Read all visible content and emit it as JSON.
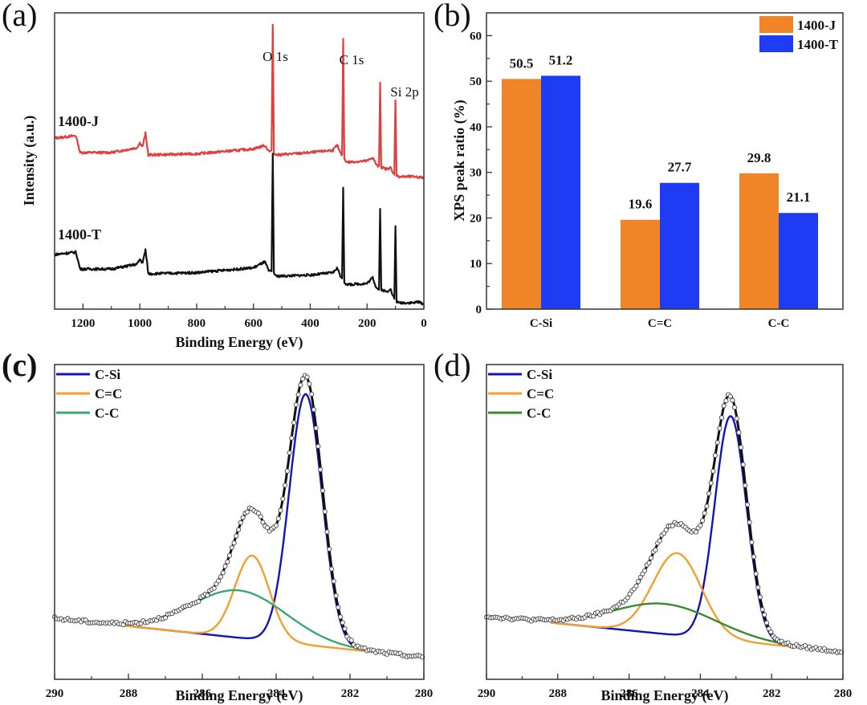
{
  "chart_data": [
    {
      "id": "a",
      "panel_label": "(a)",
      "type": "line",
      "title": "",
      "xlabel": "Binding Energy (eV)",
      "ylabel": "Intensity (a.u.)",
      "xlim": [
        1300,
        0
      ],
      "x_reversed": true,
      "xticks": [
        1200,
        1000,
        800,
        600,
        400,
        200,
        0
      ],
      "xticks_minor": [
        1100,
        900,
        700,
        500,
        300,
        100
      ],
      "yticks": [],
      "peak_annotations": [
        {
          "label": "O 1s",
          "x": 532
        },
        {
          "label": "C 1s",
          "x": 284
        },
        {
          "label": "Si 2p",
          "x": 100
        }
      ],
      "series": [
        {
          "name": "1400-J",
          "color": "#e04040",
          "offset": 1.0,
          "baseline_points": [
            [
              1300,
              0.42
            ],
            [
              1225,
              0.44
            ],
            [
              1210,
              0.3
            ],
            [
              1100,
              0.3
            ],
            [
              1010,
              0.34
            ],
            [
              1000,
              0.38
            ],
            [
              990,
              0.35
            ],
            [
              980,
              0.46
            ],
            [
              970,
              0.28
            ],
            [
              800,
              0.29
            ],
            [
              600,
              0.33
            ],
            [
              560,
              0.36
            ],
            [
              545,
              0.31
            ],
            [
              532,
              0.31
            ],
            [
              520,
              0.28
            ],
            [
              400,
              0.3
            ],
            [
              320,
              0.32
            ],
            [
              305,
              0.36
            ],
            [
              295,
              0.3
            ],
            [
              284,
              0.26
            ],
            [
              270,
              0.22
            ],
            [
              200,
              0.23
            ],
            [
              180,
              0.26
            ],
            [
              170,
              0.21
            ],
            [
              160,
              0.18
            ],
            [
              150,
              0.18
            ],
            [
              130,
              0.16
            ],
            [
              118,
              0.18
            ],
            [
              110,
              0.13
            ],
            [
              100,
              0.12
            ],
            [
              90,
              0.1
            ],
            [
              30,
              0.1
            ],
            [
              0,
              0.09
            ]
          ],
          "spikes": [
            {
              "x": 532,
              "h": 1.05
            },
            {
              "x": 284,
              "h": 0.98
            },
            {
              "x": 154,
              "h": 0.7
            },
            {
              "x": 100,
              "h": 0.62
            }
          ]
        },
        {
          "name": "1400-T",
          "color": "#111111",
          "offset": 0.0,
          "baseline_points": [
            [
              1300,
              0.42
            ],
            [
              1225,
              0.44
            ],
            [
              1210,
              0.3
            ],
            [
              1100,
              0.3
            ],
            [
              1010,
              0.34
            ],
            [
              1000,
              0.38
            ],
            [
              990,
              0.35
            ],
            [
              980,
              0.46
            ],
            [
              970,
              0.26
            ],
            [
              800,
              0.27
            ],
            [
              600,
              0.31
            ],
            [
              560,
              0.36
            ],
            [
              545,
              0.28
            ],
            [
              532,
              0.28
            ],
            [
              520,
              0.24
            ],
            [
              400,
              0.25
            ],
            [
              320,
              0.27
            ],
            [
              305,
              0.31
            ],
            [
              295,
              0.25
            ],
            [
              284,
              0.2
            ],
            [
              270,
              0.17
            ],
            [
              200,
              0.18
            ],
            [
              180,
              0.23
            ],
            [
              170,
              0.16
            ],
            [
              160,
              0.13
            ],
            [
              150,
              0.13
            ],
            [
              130,
              0.11
            ],
            [
              118,
              0.14
            ],
            [
              110,
              0.08
            ],
            [
              100,
              0.04
            ],
            [
              90,
              0.02
            ],
            [
              30,
              0.02
            ],
            [
              25,
              0.03
            ],
            [
              0,
              0.01
            ]
          ],
          "spikes": [
            {
              "x": 532,
              "h": 0.98
            },
            {
              "x": 284,
              "h": 0.78
            },
            {
              "x": 154,
              "h": 0.66
            },
            {
              "x": 100,
              "h": 0.62
            }
          ]
        }
      ]
    },
    {
      "id": "b",
      "panel_label": "(b)",
      "type": "bar",
      "title": "",
      "xlabel": "",
      "ylabel": "XPS peak ratio (%)",
      "ylim": [
        0,
        65
      ],
      "yticks": [
        0,
        10,
        20,
        30,
        40,
        50,
        60
      ],
      "categories": [
        "C-Si",
        "C=C",
        "C-C"
      ],
      "legend_position": "top-right",
      "series": [
        {
          "name": "1400-J",
          "color": "#f08528",
          "values": [
            50.5,
            19.6,
            29.8
          ],
          "labels": [
            "50.5",
            "19.6",
            "29.8"
          ]
        },
        {
          "name": "1400-T",
          "color": "#1f3cf5",
          "values": [
            51.2,
            27.7,
            21.1
          ],
          "labels": [
            "51.2",
            "27.7",
            "21.1"
          ]
        }
      ]
    },
    {
      "id": "c",
      "panel_label": "(c)",
      "type": "line",
      "title": "",
      "xlabel": "Binding Energy (eV)",
      "ylabel": "",
      "xlim": [
        290,
        280
      ],
      "x_reversed": true,
      "xticks": [
        290,
        288,
        286,
        284,
        282,
        280
      ],
      "xticks_minor": [
        289,
        287,
        285,
        283,
        281
      ],
      "ylim": [
        -0.08,
        1.05
      ],
      "legend_position": "top-left",
      "background": 0.02,
      "background_slope": 0.014,
      "components": [
        {
          "name": "C-Si",
          "color": "#1414b4",
          "center": 283.2,
          "height": 0.9,
          "fwhm": 1.05
        },
        {
          "name": "C=C",
          "color": "#f0a030",
          "center": 284.65,
          "height": 0.3,
          "fwhm": 1.1
        },
        {
          "name": "C-C",
          "color": "#3aa870",
          "center": 285.0,
          "height": 0.17,
          "fwhm": 3.0
        }
      ],
      "envelope_color": "#111111",
      "raw_data_marker": "open-circle"
    },
    {
      "id": "d",
      "panel_label": "(d)",
      "type": "line",
      "title": "",
      "xlabel": "Binding Energy (eV)",
      "ylabel": "",
      "xlim": [
        290,
        280
      ],
      "x_reversed": true,
      "xticks": [
        290,
        288,
        286,
        284,
        282,
        280
      ],
      "xticks_minor": [
        289,
        287,
        285,
        283,
        281
      ],
      "ylim": [
        -0.1,
        1.05
      ],
      "legend_position": "top-left",
      "background": 0.02,
      "background_slope": 0.013,
      "components": [
        {
          "name": "C-Si",
          "color": "#1414b4",
          "center": 283.15,
          "height": 0.82,
          "fwhm": 1.05
        },
        {
          "name": "C=C",
          "color": "#f0a030",
          "center": 284.65,
          "height": 0.3,
          "fwhm": 1.6
        },
        {
          "name": "C-C",
          "color": "#3a8a30",
          "center": 285.0,
          "height": 0.11,
          "fwhm": 3.4
        }
      ],
      "envelope_color": "#111111",
      "raw_data_marker": "open-circle"
    }
  ]
}
